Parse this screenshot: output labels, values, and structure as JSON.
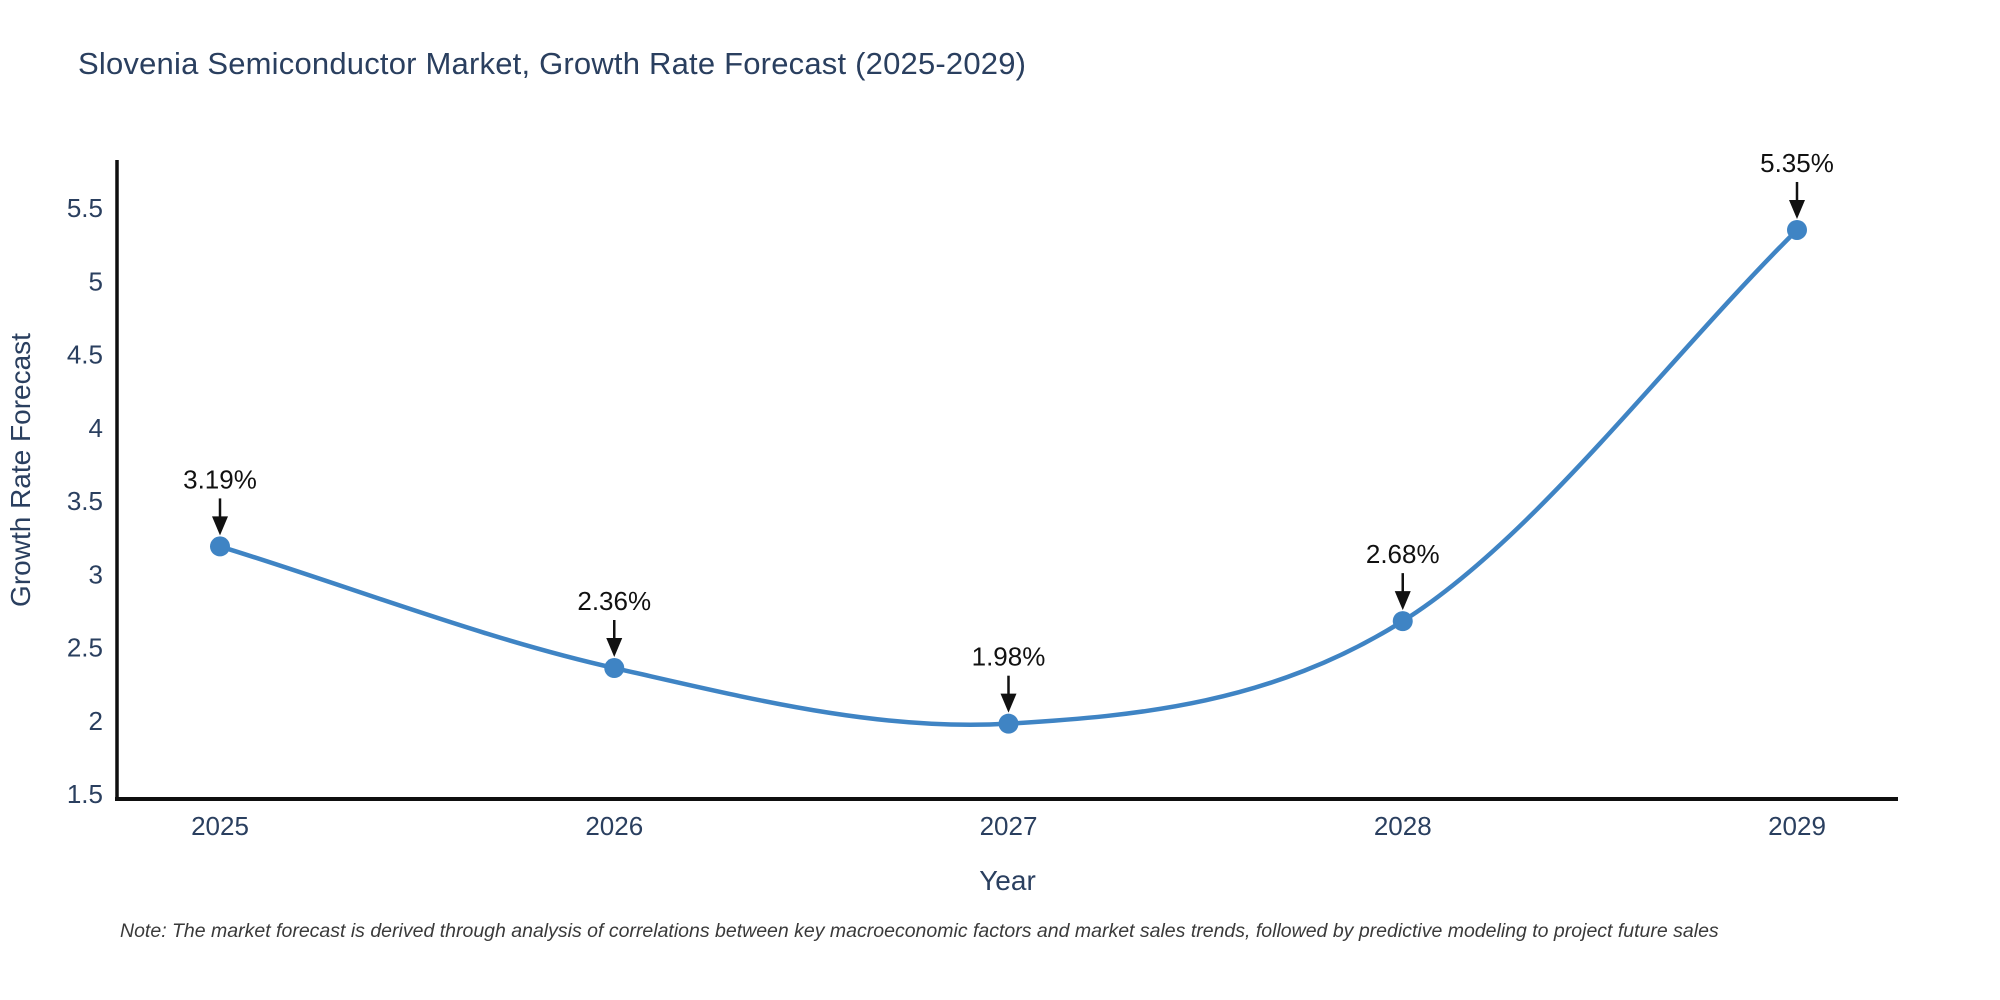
{
  "title": "Slovenia Semiconductor Market, Growth Rate Forecast (2025-2029)",
  "note": "Note: The market forecast is derived through analysis of correlations between key macroeconomic factors and market sales trends, followed by predictive modeling to project future sales",
  "chart_data": {
    "type": "line",
    "line_shape": "spline",
    "title": "Slovenia Semiconductor Market, Growth Rate Forecast (2025-2029)",
    "xlabel": "Year",
    "ylabel": "Growth Rate Forecast",
    "x": [
      2025,
      2026,
      2027,
      2028,
      2029
    ],
    "series": [
      {
        "name": "Growth Rate Forecast",
        "values": [
          3.19,
          2.36,
          1.98,
          2.68,
          5.35
        ]
      }
    ],
    "point_labels": [
      "3.19%",
      "2.36%",
      "1.98%",
      "2.68%",
      "5.35%"
    ],
    "yticks": [
      1.5,
      2,
      2.5,
      3,
      3.5,
      4,
      4.5,
      5,
      5.5
    ],
    "ylim": [
      1.5,
      5.5
    ],
    "grid": false,
    "legend_position": "none",
    "annotation_style": "black-down-arrow"
  },
  "colors": {
    "title_text": "#2a3f5f",
    "axis_text": "#2a3f5f",
    "axis_line": "#0f0f0f",
    "line": "#3f84c4",
    "marker": "#3f84c4",
    "annotation": "#111111",
    "note_text": "#3a3a3a",
    "background": "#ffffff"
  }
}
